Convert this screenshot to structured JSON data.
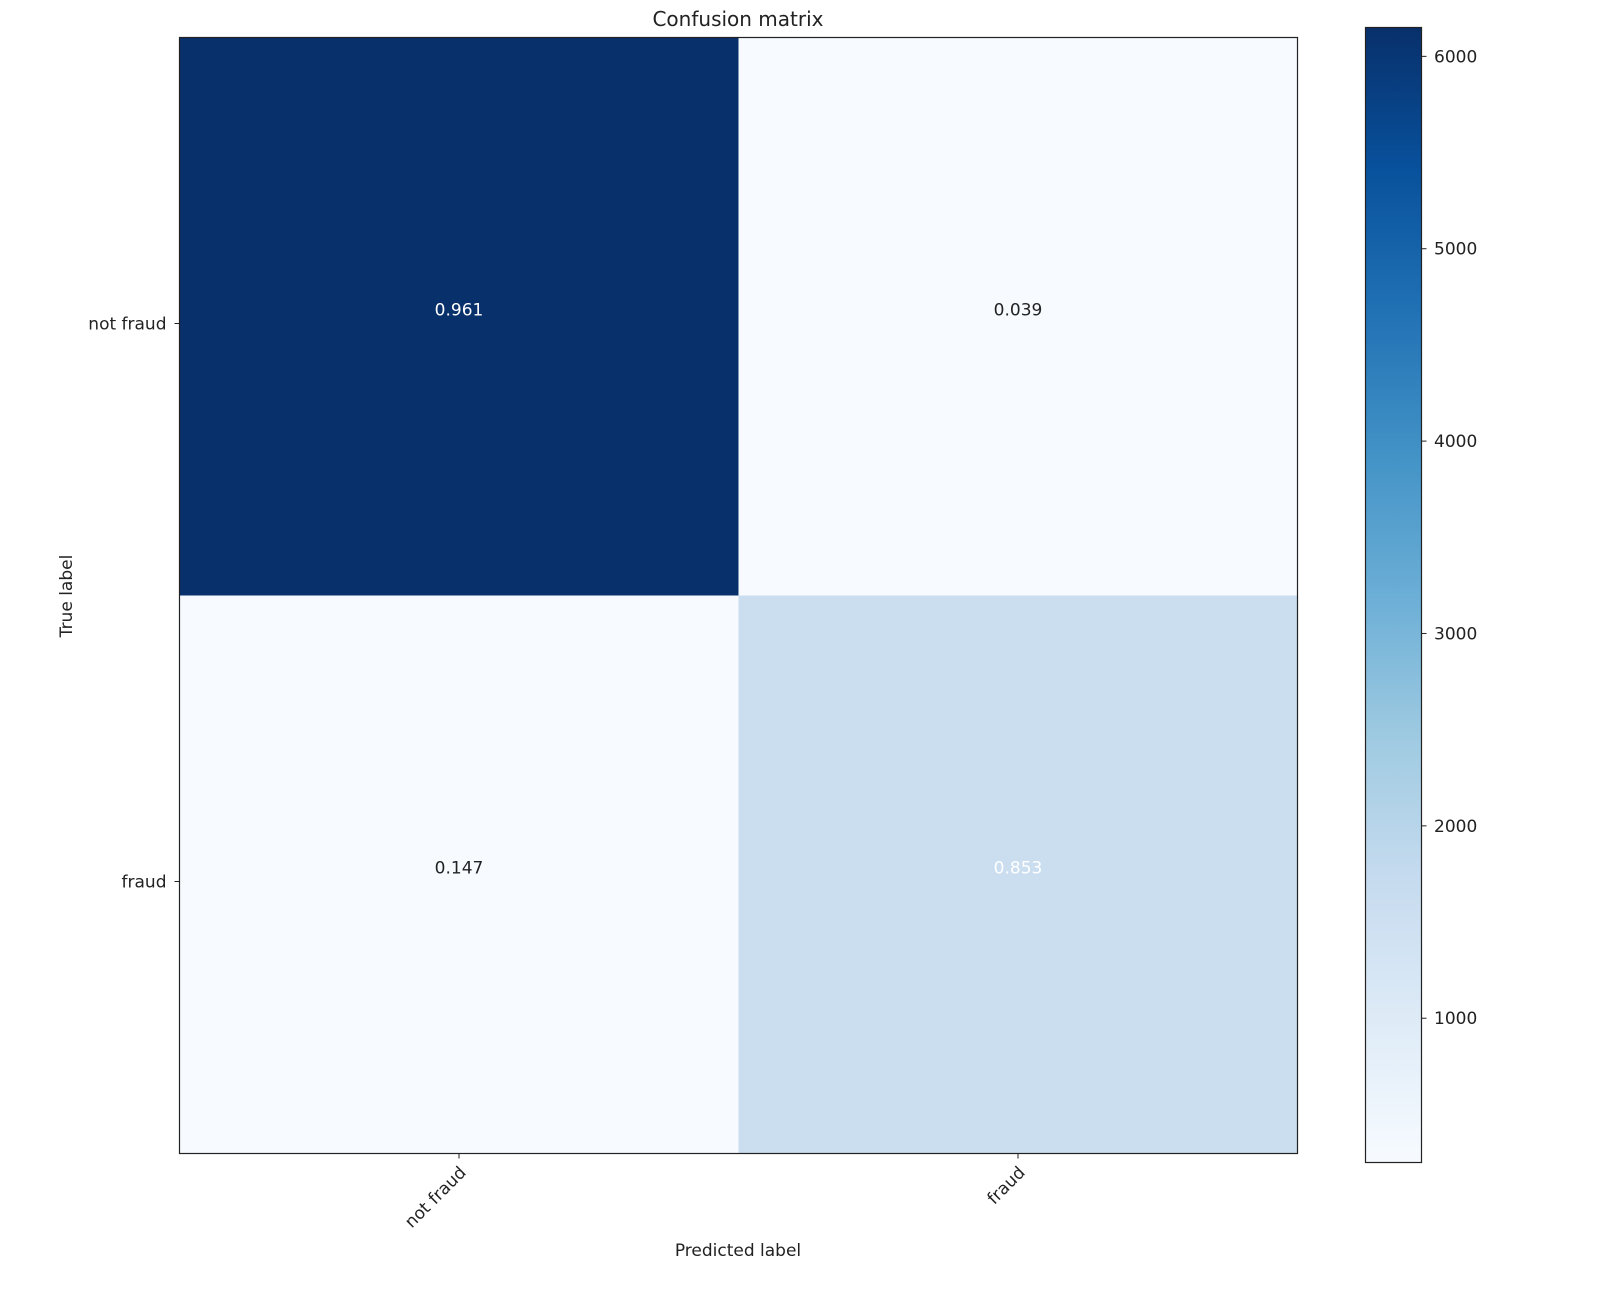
{
  "chart_data": {
    "type": "heatmap",
    "title": "Confusion matrix",
    "xlabel": "Predicted label",
    "ylabel": "True label",
    "x_categories": [
      "not fraud",
      "fraud"
    ],
    "y_categories": [
      "not fraud",
      "fraud"
    ],
    "values": [
      [
        0.961,
        0.039
      ],
      [
        0.147,
        0.853
      ]
    ],
    "cell_colors": [
      [
        "#08306b",
        "#f7fbff"
      ],
      [
        "#f7fbff",
        "#cbdef0"
      ]
    ],
    "text_colors": [
      [
        "#ffffff",
        "#222222"
      ],
      [
        "#222222",
        "#ffffff"
      ]
    ],
    "colormap": "Blues",
    "colorbar": {
      "range": [
        250,
        6150
      ],
      "ticks": [
        1000,
        2000,
        3000,
        4000,
        5000,
        6000
      ],
      "tick_labels": [
        "1000",
        "2000",
        "3000",
        "4000",
        "5000",
        "6000"
      ]
    },
    "grid": false
  }
}
